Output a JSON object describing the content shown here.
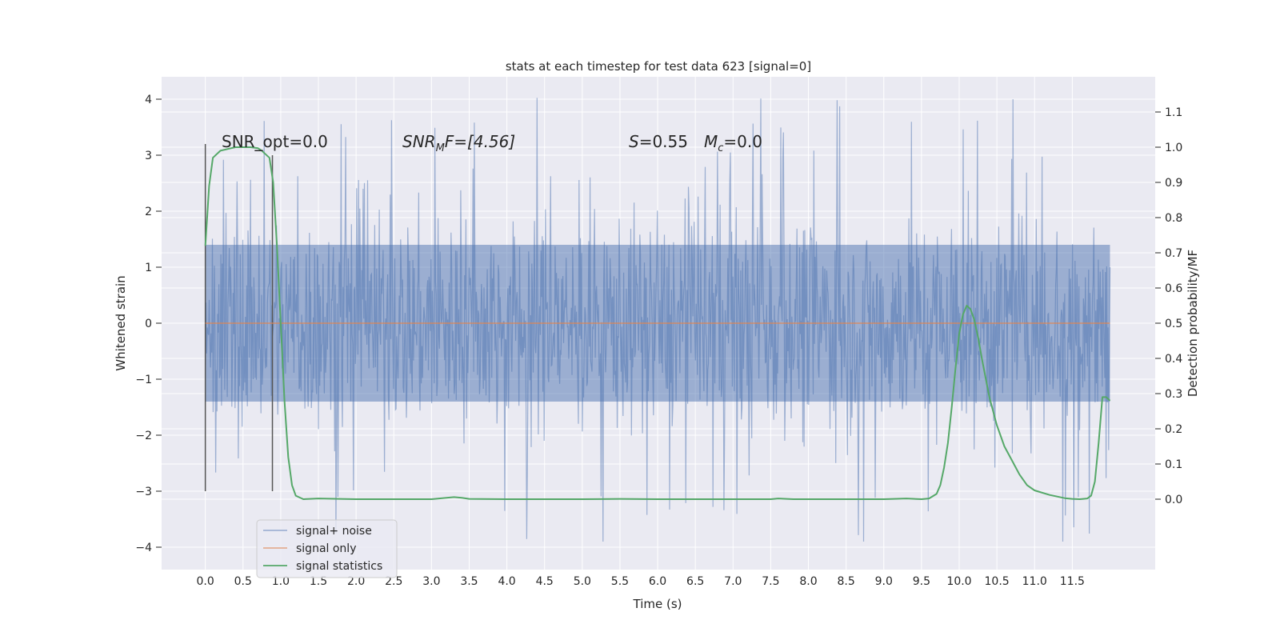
{
  "chart_data": {
    "type": "line",
    "title": "stats at each timestep for test data 623 [signal=0]",
    "xlabel": "Time (s)",
    "ylabel_left": "Whitened strain",
    "ylabel_right": "Detection probability/MF",
    "xlim": [
      -0.58,
      12.6
    ],
    "ylim_left": [
      -4.4,
      4.4
    ],
    "ylim_right": [
      -0.2,
      1.2
    ],
    "x_ticks": [
      "0.0",
      "0.5",
      "1.0",
      "1.5",
      "2.0",
      "2.5",
      "3.0",
      "3.5",
      "4.0",
      "4.5",
      "5.0",
      "5.5",
      "6.0",
      "6.5",
      "7.0",
      "7.5",
      "8.0",
      "8.5",
      "9.0",
      "9.5",
      "10.0",
      "10.5",
      "11.0",
      "11.5"
    ],
    "y_ticks_left": [
      "4",
      "3",
      "2",
      "1",
      "0",
      "−1",
      "−2",
      "−3",
      "−4"
    ],
    "y_ticks_right": [
      "1.1",
      "1.0",
      "0.9",
      "0.8",
      "0.7",
      "0.6",
      "0.5",
      "0.4",
      "0.3",
      "0.2",
      "0.1",
      "0.0"
    ],
    "grid": true,
    "legend_position": "lower-left",
    "annotations": {
      "snr_opt": "SNR_opt=0.0",
      "snr_mf_main": "SNR",
      "snr_mf_sub": "M",
      "snr_mf_rest": "F=[4.56]",
      "s_main": "S",
      "s_rest": "=0.55",
      "mc_main": "M",
      "mc_sub": "c",
      "mc_rest": "=0.0"
    },
    "vlines": [
      {
        "x": 0.0,
        "ymin": -3.0,
        "ymax": 3.2
      },
      {
        "x": 0.89,
        "ymin": -3.0,
        "ymax": 3.0
      }
    ],
    "series": [
      {
        "name": "signal+ noise",
        "axis": "left",
        "color": "#4c72b0",
        "kind": "noise",
        "x_range": [
          0.0,
          12.0
        ],
        "envelope": {
          "core": 1.4,
          "typical_peak": 2.2,
          "max": 4.1,
          "min": -3.9
        }
      },
      {
        "name": "signal only",
        "axis": "left",
        "color": "#dd8452",
        "x": [
          0.0,
          12.0
        ],
        "y": [
          0.0,
          0.0
        ]
      },
      {
        "name": "signal statistics",
        "axis": "right",
        "color": "#55a868",
        "x": [
          0.0,
          0.05,
          0.1,
          0.2,
          0.3,
          0.4,
          0.5,
          0.6,
          0.7,
          0.75,
          0.8,
          0.85,
          0.9,
          0.95,
          1.0,
          1.05,
          1.1,
          1.15,
          1.2,
          1.3,
          1.5,
          2.0,
          2.5,
          3.0,
          3.2,
          3.3,
          3.4,
          3.5,
          4.0,
          5.0,
          5.5,
          6.0,
          7.0,
          7.5,
          7.6,
          7.8,
          8.0,
          8.5,
          9.0,
          9.3,
          9.5,
          9.6,
          9.7,
          9.75,
          9.8,
          9.85,
          9.9,
          9.95,
          10.0,
          10.05,
          10.1,
          10.15,
          10.2,
          10.25,
          10.3,
          10.4,
          10.5,
          10.6,
          10.7,
          10.8,
          10.9,
          11.0,
          11.2,
          11.4,
          11.5,
          11.6,
          11.7,
          11.75,
          11.8,
          11.85,
          11.9,
          11.95,
          12.0
        ],
        "y": [
          0.72,
          0.89,
          0.97,
          0.99,
          0.995,
          1.0,
          1.0,
          1.0,
          0.997,
          0.99,
          0.98,
          0.97,
          0.9,
          0.72,
          0.5,
          0.28,
          0.12,
          0.04,
          0.01,
          0.0,
          0.002,
          0.0,
          0.0,
          0.0,
          0.004,
          0.006,
          0.004,
          0.001,
          0.0,
          0.0,
          0.001,
          0.0,
          0.0,
          0.0,
          0.002,
          0.0,
          0.0,
          0.0,
          0.0,
          0.002,
          0.0,
          0.002,
          0.015,
          0.04,
          0.09,
          0.16,
          0.26,
          0.37,
          0.47,
          0.525,
          0.55,
          0.54,
          0.51,
          0.46,
          0.4,
          0.29,
          0.21,
          0.15,
          0.11,
          0.07,
          0.04,
          0.025,
          0.012,
          0.003,
          0.001,
          0.0,
          0.002,
          0.01,
          0.05,
          0.16,
          0.29,
          0.29,
          0.28
        ]
      }
    ]
  }
}
